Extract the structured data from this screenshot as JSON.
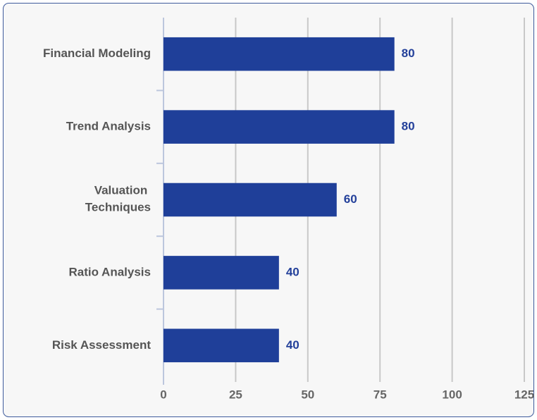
{
  "chart_data": {
    "type": "bar",
    "orientation": "horizontal",
    "categories": [
      "Financial Modeling",
      "Trend Analysis",
      "Valuation Techniques",
      "Ratio Analysis",
      "Risk Assessment"
    ],
    "values": [
      80,
      80,
      60,
      40,
      40
    ],
    "color": "#1f3f99",
    "xlim": [
      0,
      125
    ],
    "xticks": [
      0,
      25,
      50,
      75,
      100,
      125
    ],
    "grid": true
  }
}
